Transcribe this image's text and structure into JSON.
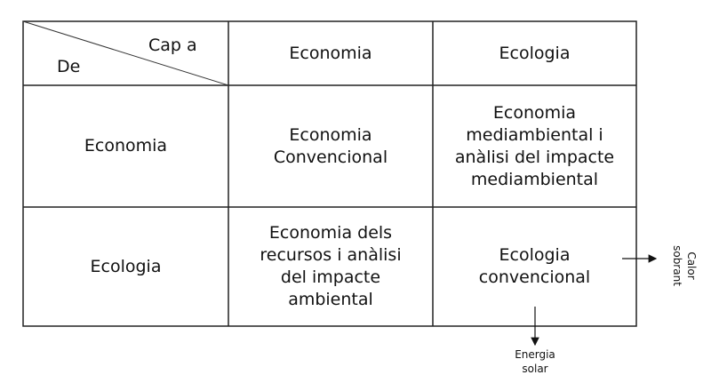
{
  "corner": {
    "to_label": "Cap a",
    "from_label": "De"
  },
  "columns": [
    "Economia",
    "Ecologia"
  ],
  "rows": [
    {
      "header": "Economia",
      "cells": [
        "Economia\nConvencional",
        "Economia\nmediambiental i\nanàlisi del impacte\nmediambiental"
      ]
    },
    {
      "header": "Ecologia",
      "cells": [
        "Economia dels\nrecursos i anàlisi\ndel impacte\nambiental",
        "Ecologia\nconvencional"
      ]
    }
  ],
  "arrows": {
    "right_label": "Calor sobrant",
    "down_label": "Energia solar"
  }
}
